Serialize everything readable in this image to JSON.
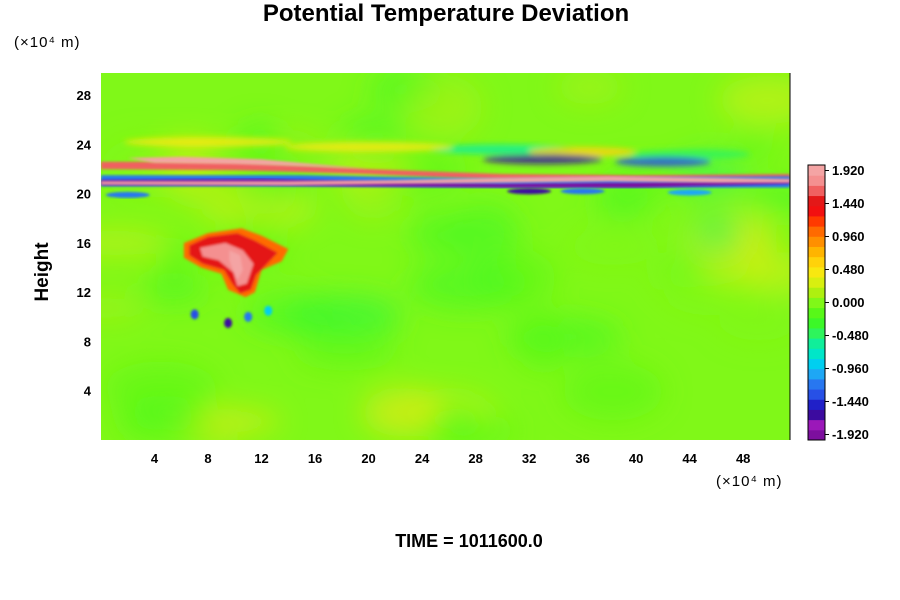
{
  "chart_data": {
    "type": "heatmap",
    "title": "Potential Temperature Deviation",
    "ylabel": "Height",
    "x_unit": "(×10⁴ m)",
    "y_unit": "(×10⁴ m)",
    "footer": "TIME = 1011600.0",
    "x_ticks": [
      "4",
      "8",
      "12",
      "16",
      "20",
      "24",
      "28",
      "32",
      "36",
      "40",
      "44",
      "48"
    ],
    "x_tick_values": [
      4,
      8,
      12,
      16,
      20,
      24,
      28,
      32,
      36,
      40,
      44,
      48
    ],
    "y_ticks": [
      "4",
      "8",
      "12",
      "16",
      "20",
      "24",
      "28"
    ],
    "y_tick_values": [
      4,
      8,
      12,
      16,
      20,
      24,
      28
    ],
    "xlim": [
      0,
      51.5
    ],
    "ylim": [
      0,
      29.8
    ],
    "colorbar": {
      "tick_labels": [
        "1.920",
        "1.440",
        "0.960",
        "0.480",
        "0.000",
        "-0.480",
        "-0.960",
        "-1.440",
        "-1.920"
      ],
      "tick_values": [
        1.92,
        1.44,
        0.96,
        0.48,
        0.0,
        -0.48,
        -0.96,
        -1.44,
        -1.92
      ],
      "range": [
        -2.0,
        2.0
      ],
      "colors": [
        "#7d0f9e",
        "#9b18b9",
        "#3c0b9f",
        "#2020c8",
        "#2750e6",
        "#2877f0",
        "#1ea7f5",
        "#00cff0",
        "#00e6c8",
        "#10ee9a",
        "#2ef45c",
        "#3cf828",
        "#58f818",
        "#80f818",
        "#aef010",
        "#d8ef10",
        "#f8e810",
        "#ffd20a",
        "#ffb400",
        "#ff8f00",
        "#ff6a00",
        "#ff3a00",
        "#f21010",
        "#e41818",
        "#f06060",
        "#f49090",
        "#f4a4a4"
      ]
    },
    "features": [
      {
        "name": "tropopause-band",
        "x_range": [
          0,
          51.5
        ],
        "y_center": 21.0,
        "description_values": {
          "max": 1.92,
          "min": -1.92
        }
      },
      {
        "name": "convective-cell",
        "x_center": 10,
        "y_center": 14.5,
        "peak": 1.92
      }
    ],
    "background_value": 0.0
  }
}
